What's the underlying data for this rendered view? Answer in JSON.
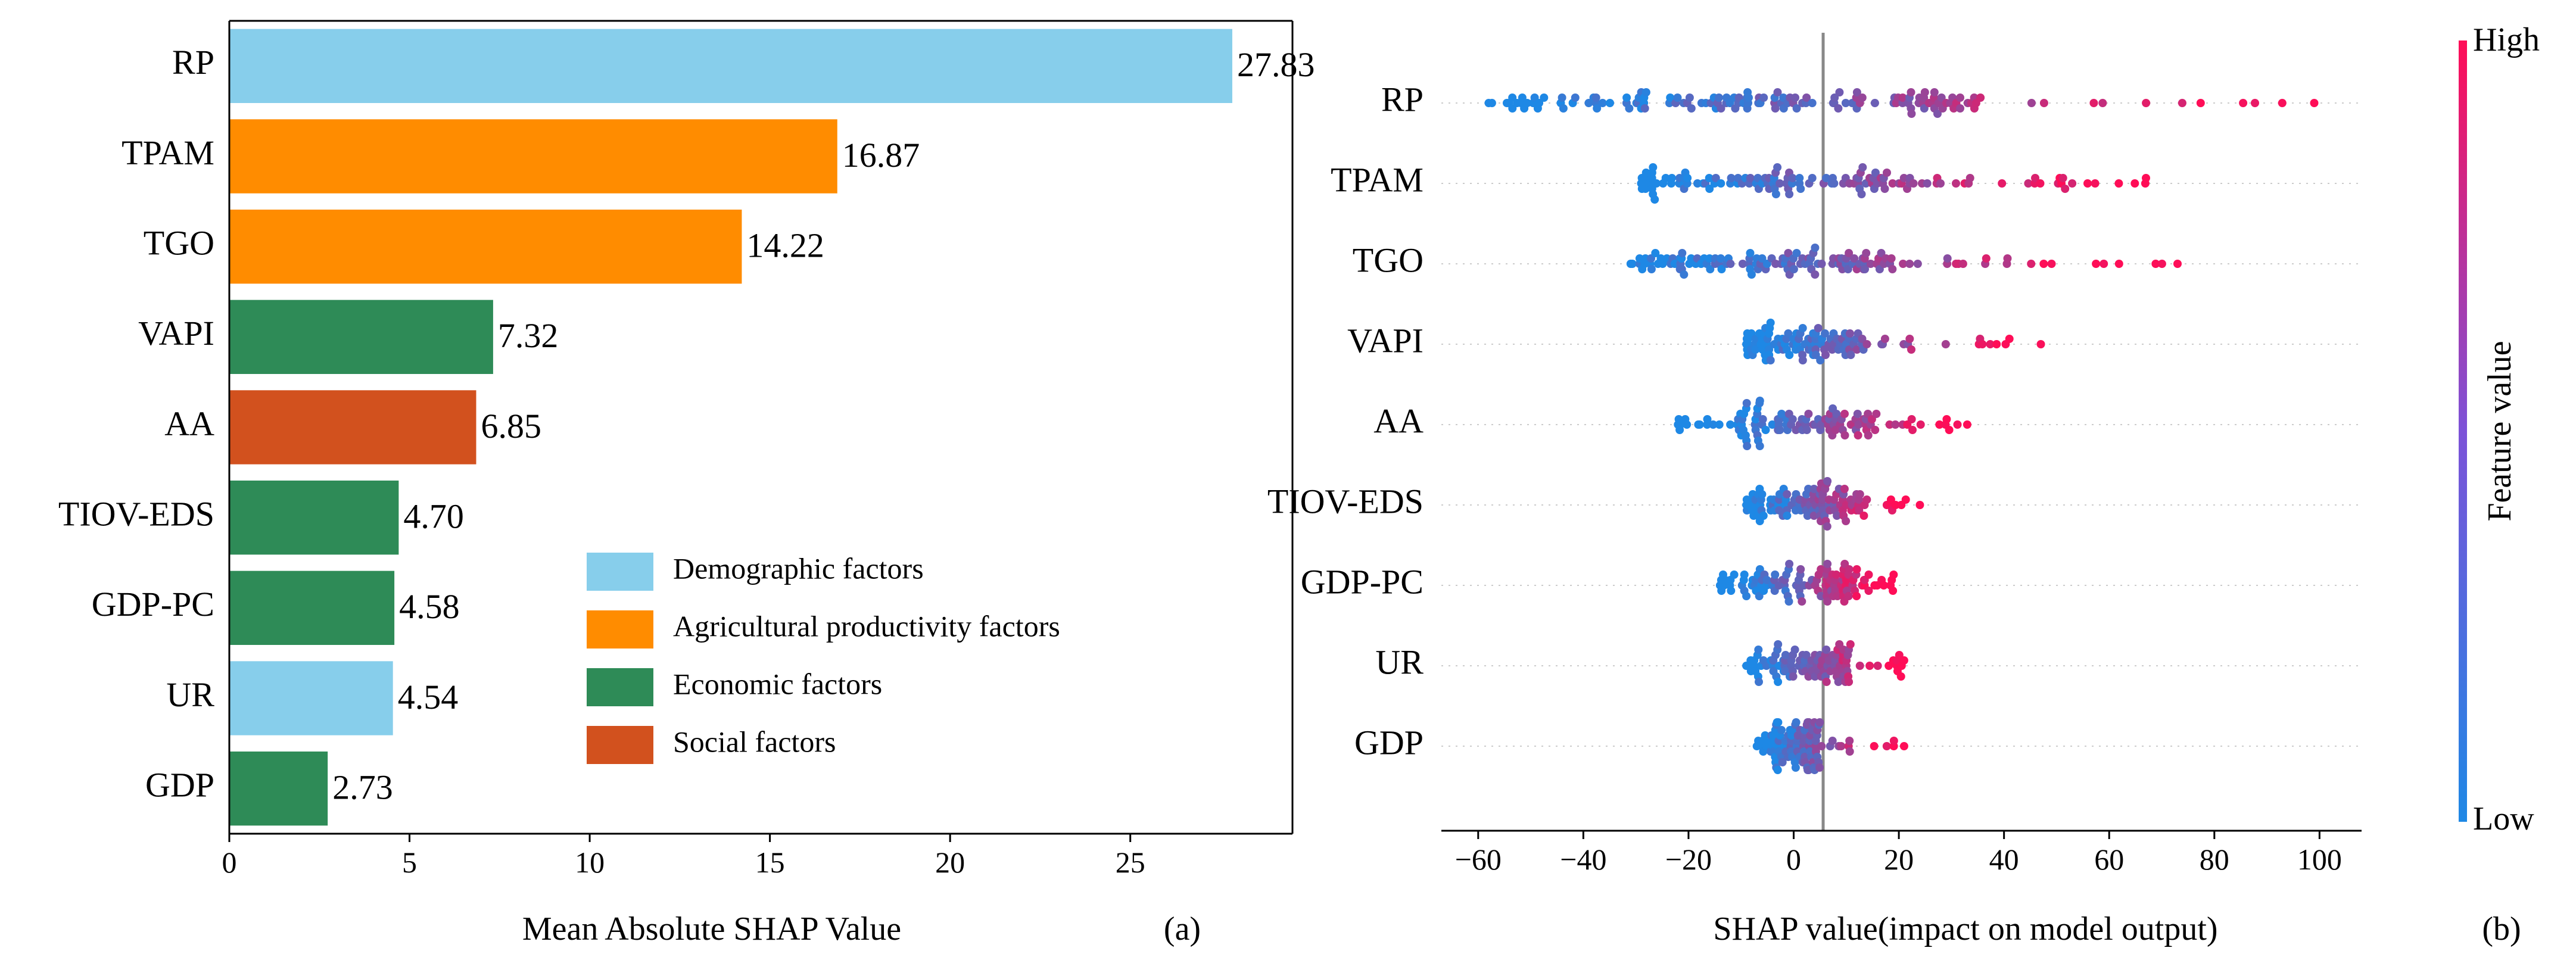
{
  "chart_data": [
    {
      "type": "bar",
      "orientation": "horizontal",
      "panel_label": "(a)",
      "xlabel": "Mean Absolute SHAP Value",
      "xlim": [
        0,
        29.5
      ],
      "xticks": [
        0,
        5,
        10,
        15,
        20,
        25
      ],
      "categories": [
        "RP",
        "TPAM",
        "TGO",
        "VAPI",
        "AA",
        "TIOV-EDS",
        "GDP-PC",
        "UR",
        "GDP"
      ],
      "values": [
        27.83,
        16.87,
        14.22,
        7.32,
        6.85,
        4.7,
        4.58,
        4.54,
        2.73
      ],
      "value_labels": [
        "27.83",
        "16.87",
        "14.22",
        "7.32",
        "6.85",
        "4.70",
        "4.58",
        "4.54",
        "2.73"
      ],
      "groups": [
        "Demographic factors",
        "Agricultural productivity factors",
        "Agricultural productivity factors",
        "Economic factors",
        "Social factors",
        "Economic factors",
        "Economic factors",
        "Demographic factors",
        "Economic factors"
      ],
      "legend": [
        {
          "label": "Demographic factors",
          "color": "#87ceeb"
        },
        {
          "label": "Agricultural productivity factors",
          "color": "#ff8c00"
        },
        {
          "label": "Economic factors",
          "color": "#2e8b57"
        },
        {
          "label": "Social factors",
          "color": "#d2511e"
        }
      ],
      "legend_position": "lower-right"
    },
    {
      "type": "scatter",
      "subtype": "beeswarm",
      "panel_label": "(b)",
      "xlabel": "SHAP value(impact on model output)",
      "xlim": [
        -67,
        108
      ],
      "xticks": [
        -60,
        -40,
        -20,
        0,
        20,
        40,
        60,
        80,
        100
      ],
      "xtick_labels": [
        "−60",
        "−40",
        "−20",
        "0",
        "20",
        "40",
        "60",
        "80",
        "100"
      ],
      "features": [
        {
          "name": "RP",
          "min": -58,
          "max": 99,
          "core": [
            -38,
            35
          ],
          "mid": 5,
          "n": 150
        },
        {
          "name": "TPAM",
          "min": -29,
          "max": 67,
          "core": [
            -22,
            22
          ],
          "mid": 2,
          "n": 130
        },
        {
          "name": "TGO",
          "min": -31,
          "max": 73,
          "core": [
            -25,
            20
          ],
          "mid": 0,
          "n": 130
        },
        {
          "name": "VAPI",
          "min": -9,
          "max": 47,
          "core": [
            -5,
            14
          ],
          "mid": 5,
          "n": 110
        },
        {
          "name": "AA",
          "min": -22,
          "max": 33,
          "core": [
            -10,
            15
          ],
          "mid": 0,
          "n": 110
        },
        {
          "name": "TIOV-EDS",
          "min": -9,
          "max": 24,
          "core": [
            -6,
            12
          ],
          "mid": 3,
          "n": 110
        },
        {
          "name": "GDP-PC",
          "min": -14,
          "max": 19,
          "core": [
            -8,
            10
          ],
          "mid": 0,
          "n": 110
        },
        {
          "name": "UR",
          "min": -9,
          "max": 21,
          "core": [
            -6,
            10
          ],
          "mid": 0,
          "n": 100
        },
        {
          "name": "GDP",
          "min": -7,
          "max": 21,
          "core": [
            -4,
            5
          ],
          "mid": 0,
          "n": 100
        }
      ],
      "colorbar": {
        "label": "Feature value",
        "high": "High",
        "low": "Low",
        "low_color": "#1e88e5",
        "high_color": "#ff0d57"
      }
    }
  ]
}
